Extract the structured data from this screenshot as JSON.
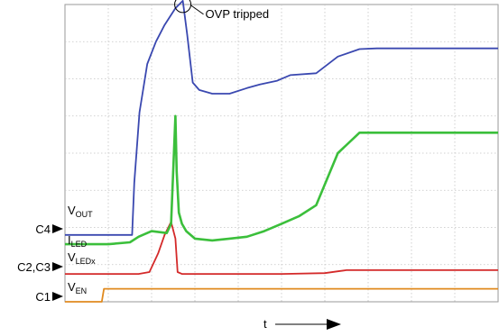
{
  "chart_data": {
    "type": "line",
    "title": "",
    "xlabel": "t",
    "ylabel": "",
    "grid": true,
    "xlim": [
      0,
      10
    ],
    "ylim": [
      0,
      8
    ],
    "annotation": "OVP tripped",
    "channel_markers": [
      "C4",
      "C2,C3",
      "C1"
    ],
    "series": [
      {
        "name": "V",
        "subscript": "OUT",
        "color": "#3a48b0",
        "x": [
          0,
          1.55,
          1.6,
          1.72,
          1.9,
          2.1,
          2.3,
          2.55,
          2.72,
          2.82,
          2.95,
          3.1,
          3.4,
          3.8,
          4.2,
          4.5,
          4.9,
          5.2,
          5.8,
          6.3,
          6.8,
          7.2,
          8,
          9,
          10
        ],
        "y": [
          1.8,
          1.8,
          3.2,
          5.1,
          6.4,
          7.0,
          7.45,
          7.9,
          8.1,
          7.2,
          5.9,
          5.7,
          5.6,
          5.6,
          5.75,
          5.85,
          5.95,
          6.1,
          6.15,
          6.6,
          6.8,
          6.82,
          6.82,
          6.82,
          6.82
        ]
      },
      {
        "name": "I",
        "subscript": "LED",
        "color": "#3bbf3b",
        "x": [
          0,
          1.0,
          1.5,
          1.7,
          2.0,
          2.35,
          2.45,
          2.55,
          2.58,
          2.63,
          2.7,
          2.8,
          3.0,
          3.4,
          3.8,
          4.2,
          4.6,
          5.0,
          5.4,
          5.8,
          6.3,
          6.8,
          7.3,
          8,
          9,
          10
        ],
        "y": [
          1.55,
          1.55,
          1.6,
          1.75,
          1.9,
          1.85,
          2.1,
          5.0,
          3.5,
          2.4,
          2.1,
          1.9,
          1.7,
          1.65,
          1.7,
          1.75,
          1.9,
          2.1,
          2.3,
          2.6,
          4.0,
          4.55,
          4.55,
          4.55,
          4.55,
          4.55
        ]
      },
      {
        "name": "V",
        "subscript": "LEDx",
        "color": "#d42a2a",
        "x": [
          0,
          1.7,
          1.95,
          2.15,
          2.3,
          2.45,
          2.55,
          2.6,
          2.7,
          3,
          4,
          5,
          6,
          6.3,
          6.5,
          7,
          8,
          9,
          10
        ],
        "y": [
          0.75,
          0.75,
          0.8,
          1.3,
          1.8,
          2.15,
          1.7,
          0.8,
          0.75,
          0.75,
          0.75,
          0.75,
          0.77,
          0.82,
          0.85,
          0.85,
          0.85,
          0.85,
          0.85
        ]
      },
      {
        "name": "V",
        "subscript": "EN",
        "color": "#e08a1e",
        "x": [
          0,
          0.85,
          0.9,
          2,
          4,
          6,
          8,
          10
        ],
        "y": [
          0,
          0,
          0.35,
          0.35,
          0.35,
          0.35,
          0.35,
          0.35
        ]
      }
    ]
  }
}
